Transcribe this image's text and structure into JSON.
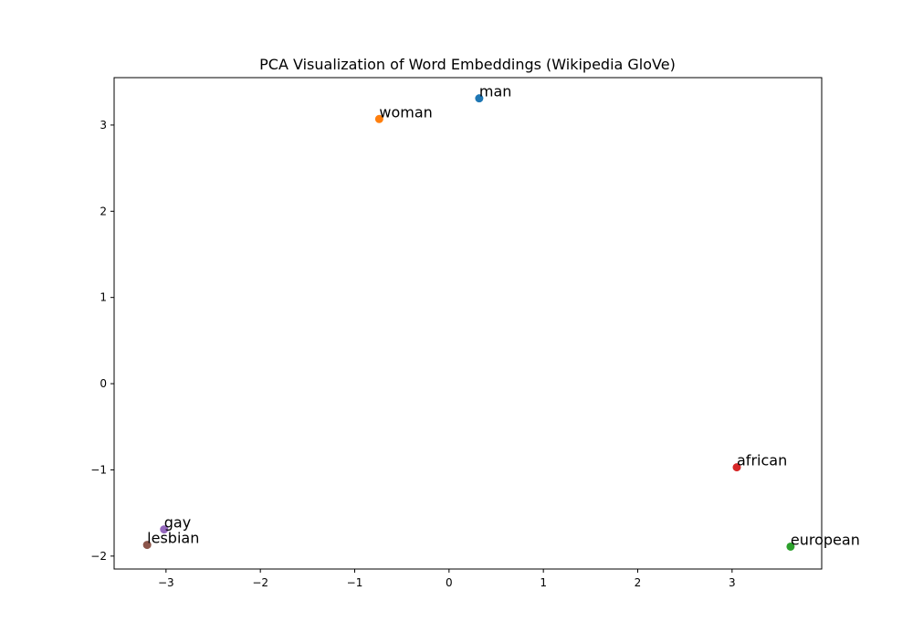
{
  "chart_data": {
    "type": "scatter",
    "title": "PCA Visualization of Word Embeddings (Wikipedia GloVe)",
    "xlabel": "",
    "ylabel": "",
    "xlim": [
      -3.55,
      3.95
    ],
    "ylim": [
      -2.15,
      3.55
    ],
    "grid": false,
    "legend": "none",
    "x_ticks": [
      {
        "value": -3,
        "label": "−3"
      },
      {
        "value": -2,
        "label": "−2"
      },
      {
        "value": -1,
        "label": "−1"
      },
      {
        "value": 0,
        "label": "0"
      },
      {
        "value": 1,
        "label": "1"
      },
      {
        "value": 2,
        "label": "2"
      },
      {
        "value": 3,
        "label": "3"
      }
    ],
    "y_ticks": [
      {
        "value": -2,
        "label": "−2"
      },
      {
        "value": -1,
        "label": "−1"
      },
      {
        "value": 0,
        "label": "0"
      },
      {
        "value": 1,
        "label": "1"
      },
      {
        "value": 2,
        "label": "2"
      },
      {
        "value": 3,
        "label": "3"
      }
    ],
    "points": [
      {
        "label": "man",
        "x": 0.32,
        "y": 3.31,
        "color": "#1f77b4"
      },
      {
        "label": "woman",
        "x": -0.74,
        "y": 3.07,
        "color": "#ff7f0e"
      },
      {
        "label": "european",
        "x": 3.62,
        "y": -1.89,
        "color": "#2ca02c"
      },
      {
        "label": "african",
        "x": 3.05,
        "y": -0.97,
        "color": "#d62728"
      },
      {
        "label": "gay",
        "x": -3.02,
        "y": -1.69,
        "color": "#9467bd"
      },
      {
        "label": "lesbian",
        "x": -3.2,
        "y": -1.87,
        "color": "#8c564b"
      }
    ]
  }
}
